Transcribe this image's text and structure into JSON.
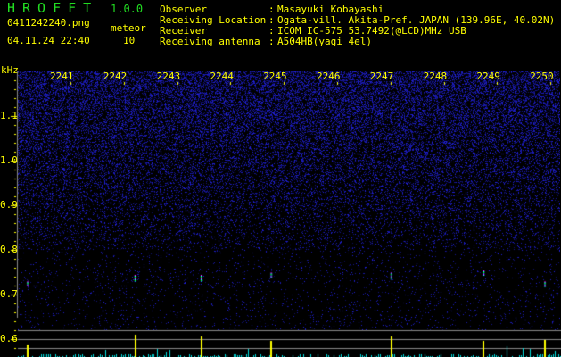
{
  "app": {
    "title": "HROFFT",
    "version": "1.0.0"
  },
  "file": {
    "name": "0411242240.png",
    "datetime": "04.11.24 22:40"
  },
  "meteor": {
    "label": "meteor",
    "count": "10"
  },
  "station": {
    "observer_label": "Observer",
    "observer": "Masayuki Kobayashi",
    "location_label": "Receiving Location",
    "location": "Ogata-vill. Akita-Pref. JAPAN (139.96E, 40.02N)",
    "receiver_label": "Receiver",
    "receiver": "ICOM IC-575 53.7492(@LCD)MHz USB",
    "antenna_label": "Receiving antenna",
    "antenna": "A504HB(yagi 4el)",
    "sep": ":"
  },
  "axes": {
    "y_unit": "kHz",
    "y_ticks": [
      "1.1",
      "1.0",
      "0.9",
      "0.8",
      "0.7",
      "0.6"
    ],
    "y_values": [
      1.1,
      1.0,
      0.9,
      0.8,
      0.7,
      0.6
    ],
    "x_ticks": [
      "2241",
      "2242",
      "2243",
      "2244",
      "2245",
      "2246",
      "2247",
      "2248",
      "2249",
      "2250"
    ]
  },
  "echoes": [
    {
      "time": 2240.18,
      "freq": 0.725,
      "level": 0.55
    },
    {
      "time": 2242.2,
      "freq": 0.74,
      "level": 1.0
    },
    {
      "time": 2243.44,
      "freq": 0.74,
      "level": 0.9
    },
    {
      "time": 2244.75,
      "freq": 0.745,
      "level": 0.7
    },
    {
      "time": 2247.0,
      "freq": 0.745,
      "level": 0.9
    },
    {
      "time": 2248.73,
      "freq": 0.75,
      "level": 0.7
    },
    {
      "time": 2249.88,
      "freq": 0.725,
      "level": 0.75
    }
  ],
  "colors": {
    "background": "#000000",
    "text": "#ffff00",
    "title": "#22dd22",
    "noise": "#1a1aa8",
    "bar": "#00e0e0",
    "echo_bar": "#ffff00",
    "grid": "#888888"
  }
}
